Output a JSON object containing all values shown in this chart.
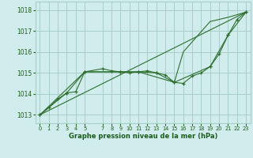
{
  "bg_color": "#d0ecec",
  "grid_color": "#a8cfc8",
  "line_color": "#2d6e2d",
  "marker_color": "#2d6e2d",
  "text_color": "#1a5c1a",
  "xlabel": "Graphe pression niveau de la mer (hPa)",
  "ylim": [
    1012.6,
    1018.4
  ],
  "xlim": [
    -0.5,
    23.5
  ],
  "yticks": [
    1013,
    1014,
    1015,
    1016,
    1017,
    1018
  ],
  "xticks": [
    0,
    1,
    2,
    3,
    4,
    5,
    7,
    8,
    9,
    10,
    11,
    12,
    13,
    14,
    15,
    16,
    17,
    18,
    19,
    20,
    21,
    22,
    23
  ],
  "series1_x": [
    0,
    1,
    2,
    3,
    4,
    5,
    7,
    8,
    9,
    10,
    11,
    12,
    13,
    14,
    15,
    16,
    17,
    18,
    19,
    20,
    21,
    22,
    23
  ],
  "series1_y": [
    1013.0,
    1013.35,
    1013.75,
    1014.05,
    1014.1,
    1015.05,
    1015.2,
    1015.1,
    1015.05,
    1015.0,
    1015.05,
    1015.1,
    1015.0,
    1014.9,
    1014.55,
    1014.5,
    1014.85,
    1015.0,
    1015.3,
    1015.9,
    1016.8,
    1017.55,
    1017.9
  ],
  "series2_x": [
    0,
    3,
    5,
    9,
    11,
    13,
    15,
    19,
    21,
    23
  ],
  "series2_y": [
    1013.0,
    1014.05,
    1015.05,
    1015.05,
    1015.05,
    1015.0,
    1014.55,
    1015.3,
    1016.8,
    1017.9
  ],
  "series3_x": [
    0,
    23
  ],
  "series3_y": [
    1013.0,
    1017.9
  ],
  "series4_x": [
    0,
    5,
    11,
    15,
    16,
    19,
    21,
    23
  ],
  "series4_y": [
    1013.0,
    1015.05,
    1015.05,
    1014.55,
    1016.0,
    1017.45,
    1017.65,
    1017.9
  ],
  "figsize": [
    3.2,
    2.0
  ],
  "dpi": 100
}
